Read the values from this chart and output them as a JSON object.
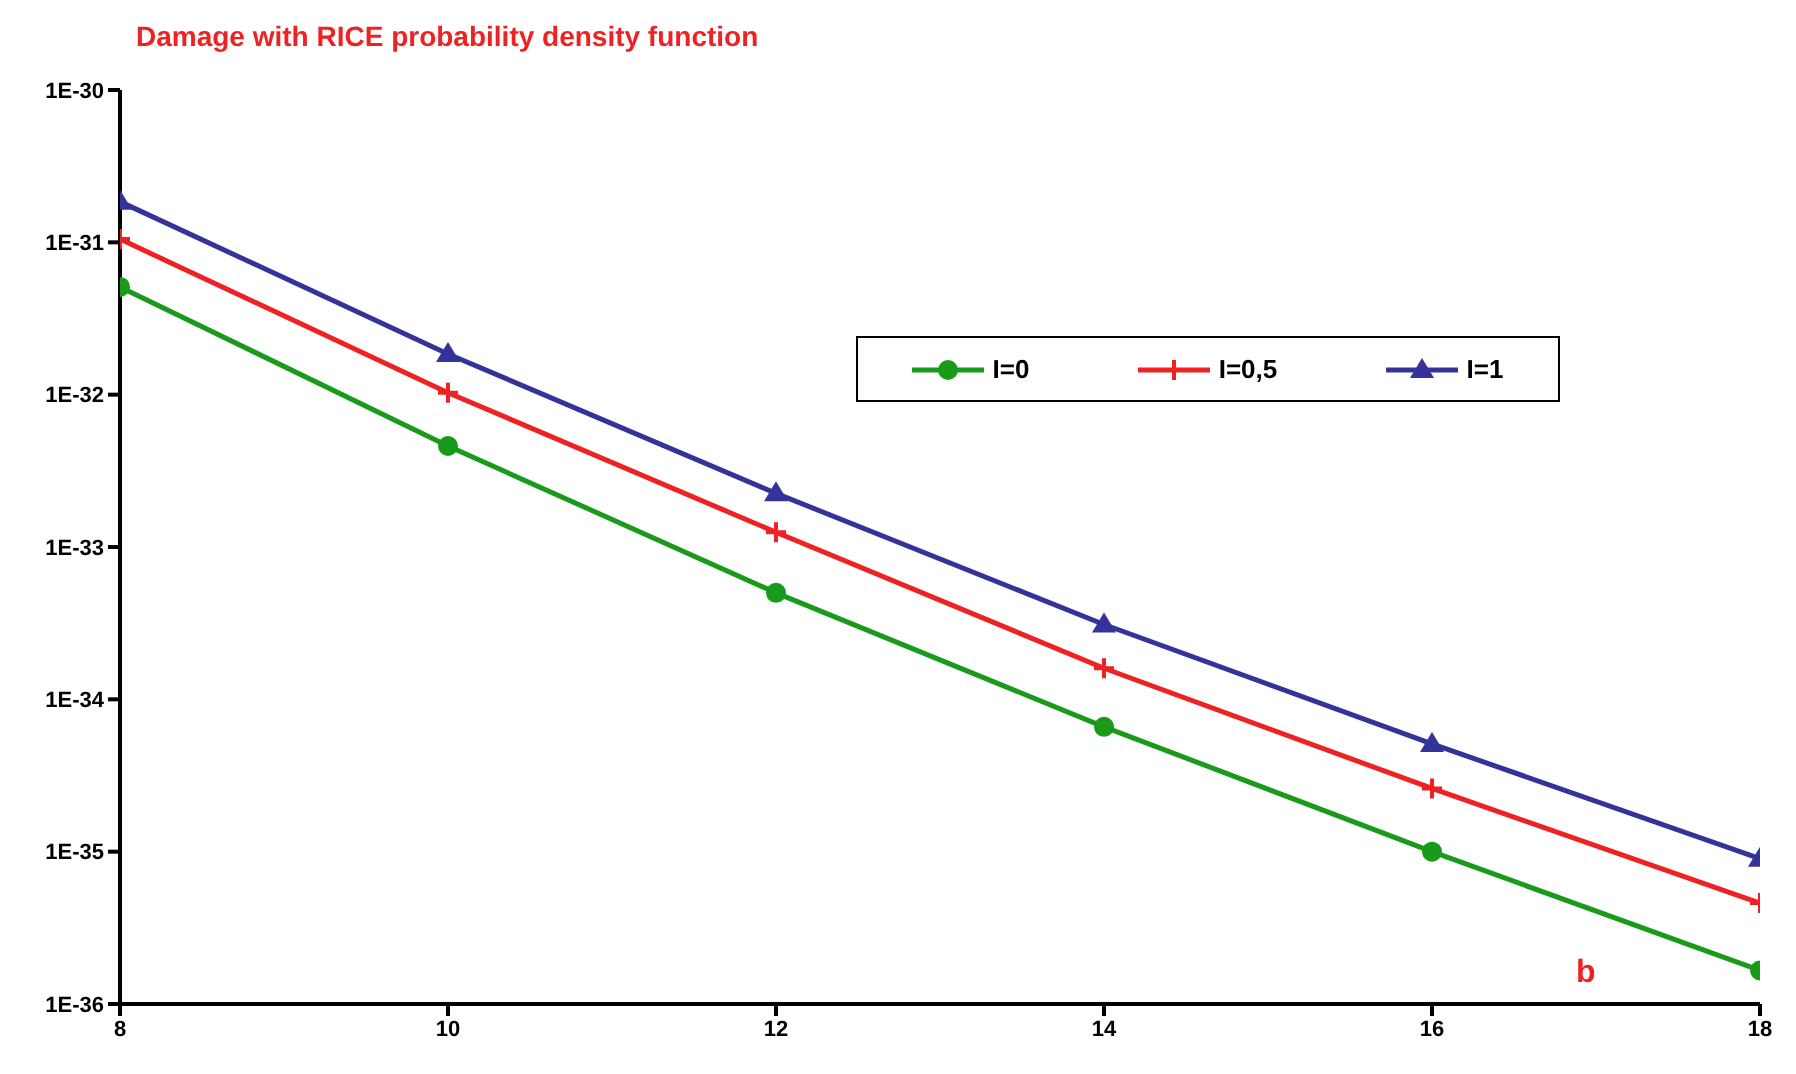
{
  "chart_data": {
    "type": "line",
    "title": "Damage with RICE probability density function",
    "annotations": [
      "b"
    ],
    "x": [
      8,
      10,
      12,
      14,
      16,
      18
    ],
    "series": [
      {
        "name": "I=0",
        "color": "#1a9a1a",
        "marker": "circle",
        "values": [
          5.1e-32,
          4.6e-33,
          5e-34,
          6.6e-35,
          1e-35,
          1.66e-36
        ]
      },
      {
        "name": "I=0,5",
        "color": "#ee2222",
        "marker": "cross",
        "values": [
          1.05e-31,
          1.03e-32,
          1.25e-33,
          1.6e-34,
          2.6e-35,
          4.6e-36
        ]
      },
      {
        "name": "I=1",
        "color": "#333399",
        "marker": "triangle",
        "values": [
          1.85e-31,
          1.85e-32,
          2.25e-33,
          3.1e-34,
          5.1e-35,
          9e-36
        ]
      }
    ],
    "xlim": [
      8,
      18
    ],
    "xticks": [
      8,
      10,
      12,
      14,
      16,
      18
    ],
    "log": "y",
    "ylim": [
      1e-36,
      1e-30
    ],
    "yticks": [
      {
        "value": 1e-36,
        "label": "1E-36"
      },
      {
        "value": 1e-35,
        "label": "1E-35"
      },
      {
        "value": 1e-34,
        "label": "1E-34"
      },
      {
        "value": 1e-33,
        "label": "1E-33"
      },
      {
        "value": 1e-32,
        "label": "1E-32"
      },
      {
        "value": 1e-31,
        "label": "1E-31"
      },
      {
        "value": 1e-30,
        "label": "1E-30"
      }
    ],
    "grid": false,
    "legend": "right"
  }
}
